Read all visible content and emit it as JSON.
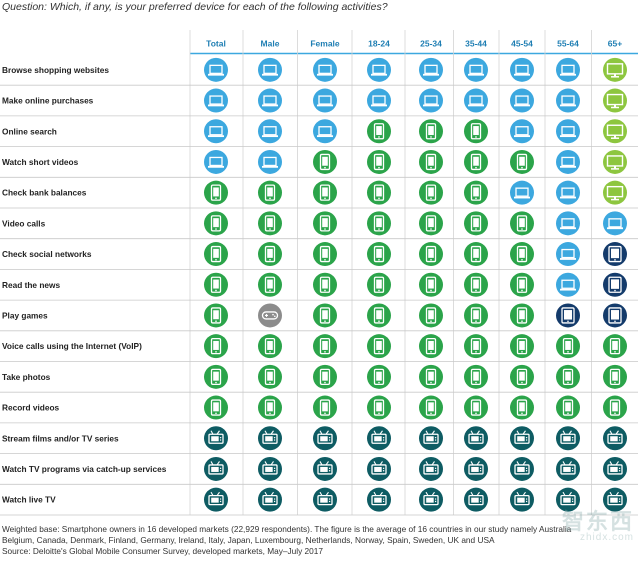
{
  "question": "Question: Which, if any, is your preferred device for each of the following activities?",
  "chart_data": {
    "type": "table",
    "title": "Question: Which, if any, is your preferred device for each of the following activities?",
    "columns": [
      "Total",
      "Male",
      "Female",
      "18-24",
      "25-34",
      "35-44",
      "45-54",
      "55-64",
      "65+"
    ],
    "rows": [
      {
        "activity": "Browse shopping websites",
        "devices": [
          "laptop",
          "laptop",
          "laptop",
          "laptop",
          "laptop",
          "laptop",
          "laptop",
          "laptop",
          "desktop"
        ]
      },
      {
        "activity": "Make online purchases",
        "devices": [
          "laptop",
          "laptop",
          "laptop",
          "laptop",
          "laptop",
          "laptop",
          "laptop",
          "laptop",
          "desktop"
        ]
      },
      {
        "activity": "Online search",
        "devices": [
          "laptop",
          "laptop",
          "laptop",
          "smartphone",
          "smartphone",
          "smartphone",
          "laptop",
          "laptop",
          "desktop"
        ]
      },
      {
        "activity": "Watch short videos",
        "devices": [
          "laptop",
          "laptop",
          "smartphone",
          "smartphone",
          "smartphone",
          "smartphone",
          "smartphone",
          "laptop",
          "desktop"
        ]
      },
      {
        "activity": "Check bank balances",
        "devices": [
          "smartphone",
          "smartphone",
          "smartphone",
          "smartphone",
          "smartphone",
          "smartphone",
          "laptop",
          "laptop",
          "desktop"
        ]
      },
      {
        "activity": "Video calls",
        "devices": [
          "smartphone",
          "smartphone",
          "smartphone",
          "smartphone",
          "smartphone",
          "smartphone",
          "smartphone",
          "laptop",
          "laptop"
        ]
      },
      {
        "activity": "Check social networks",
        "devices": [
          "smartphone",
          "smartphone",
          "smartphone",
          "smartphone",
          "smartphone",
          "smartphone",
          "smartphone",
          "laptop",
          "tablet"
        ]
      },
      {
        "activity": "Read the news",
        "devices": [
          "smartphone",
          "smartphone",
          "smartphone",
          "smartphone",
          "smartphone",
          "smartphone",
          "smartphone",
          "laptop",
          "tablet"
        ]
      },
      {
        "activity": "Play games",
        "devices": [
          "smartphone",
          "games console",
          "smartphone",
          "smartphone",
          "smartphone",
          "smartphone",
          "smartphone",
          "tablet",
          "tablet"
        ]
      },
      {
        "activity": "Voice calls using the Internet (VoIP)",
        "devices": [
          "smartphone",
          "smartphone",
          "smartphone",
          "smartphone",
          "smartphone",
          "smartphone",
          "smartphone",
          "smartphone",
          "smartphone"
        ]
      },
      {
        "activity": "Take photos",
        "devices": [
          "smartphone",
          "smartphone",
          "smartphone",
          "smartphone",
          "smartphone",
          "smartphone",
          "smartphone",
          "smartphone",
          "smartphone"
        ]
      },
      {
        "activity": "Record videos",
        "devices": [
          "smartphone",
          "smartphone",
          "smartphone",
          "smartphone",
          "smartphone",
          "smartphone",
          "smartphone",
          "smartphone",
          "smartphone"
        ]
      },
      {
        "activity": "Stream films and/or TV series",
        "devices": [
          "tv",
          "tv",
          "tv",
          "tv",
          "tv",
          "tv",
          "tv",
          "tv",
          "tv"
        ]
      },
      {
        "activity": "Watch TV programs via catch-up services",
        "devices": [
          "tv",
          "tv",
          "tv",
          "tv",
          "tv",
          "tv",
          "tv",
          "tv",
          "tv"
        ]
      },
      {
        "activity": "Watch live TV",
        "devices": [
          "tv",
          "tv",
          "tv",
          "tv",
          "tv",
          "tv",
          "tv",
          "tv",
          "tv"
        ]
      }
    ]
  },
  "device_colors": {
    "laptop": "#3CA8DF",
    "desktop": "#8DC63F",
    "smartphone": "#2BA44A",
    "tablet": "#143B6B",
    "games console": "#8C8C8C",
    "tv": "#0E5C63"
  },
  "colors": {
    "header_text": "#1E7EB3",
    "header_line": "#3CA8DF",
    "row_line": "#c9c9c9"
  },
  "footer": {
    "line1": "Weighted base: Smartphone owners in 16 developed markets (22,929 respondents). The figure is the average of 16 countries in our study namely Australia",
    "line2": "Belgium, Canada, Denmark, Finland, Germany, Ireland, Italy, Japan, Luxembourg, Netherlands, Norway, Spain, Sweden, UK and USA",
    "line3": "Source: Deloitte's Global Mobile Consumer Survey, developed markets, May–July 2017"
  },
  "watermark": {
    "main": "智东西",
    "sub": "zhidx.com"
  }
}
